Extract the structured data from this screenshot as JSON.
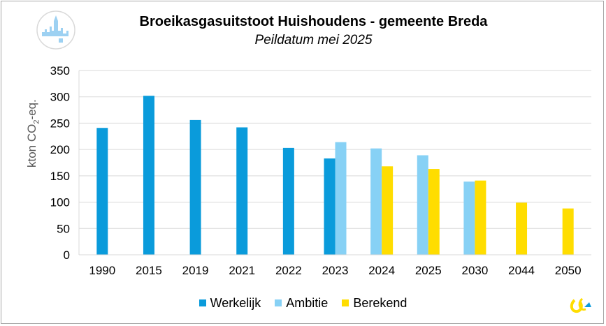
{
  "chart_data": {
    "type": "bar",
    "title": "Broeikasgasuitstoot Huishoudens - gemeente Breda",
    "subtitle": "Peildatum mei 2025",
    "ylabel_prefix": "kton CO",
    "ylabel_sub": "2",
    "ylabel_suffix": "-eq.",
    "categories": [
      "1990",
      "2015",
      "2019",
      "2021",
      "2022",
      "2023",
      "2024",
      "2025",
      "2030",
      "2044",
      "2050"
    ],
    "ylim": [
      0,
      350
    ],
    "yticks": [
      0,
      50,
      100,
      150,
      200,
      250,
      300,
      350
    ],
    "grid": true,
    "legend_position": "bottom",
    "series": [
      {
        "name": "Werkelijk",
        "color": "#0a9bdb",
        "values": [
          241,
          302,
          256,
          242,
          203,
          183,
          null,
          null,
          null,
          null,
          null
        ]
      },
      {
        "name": "Ambitie",
        "color": "#87d1f5",
        "values": [
          null,
          null,
          null,
          null,
          null,
          214,
          202,
          189,
          139,
          null,
          null
        ]
      },
      {
        "name": "Berekend",
        "color": "#ffdd00",
        "values": [
          null,
          null,
          null,
          null,
          null,
          null,
          168,
          163,
          141,
          99,
          88
        ]
      }
    ]
  },
  "logo": {
    "name": "breda-skyline-logo"
  },
  "corner_logo": {
    "name": "klimaatmonitor-logo"
  }
}
